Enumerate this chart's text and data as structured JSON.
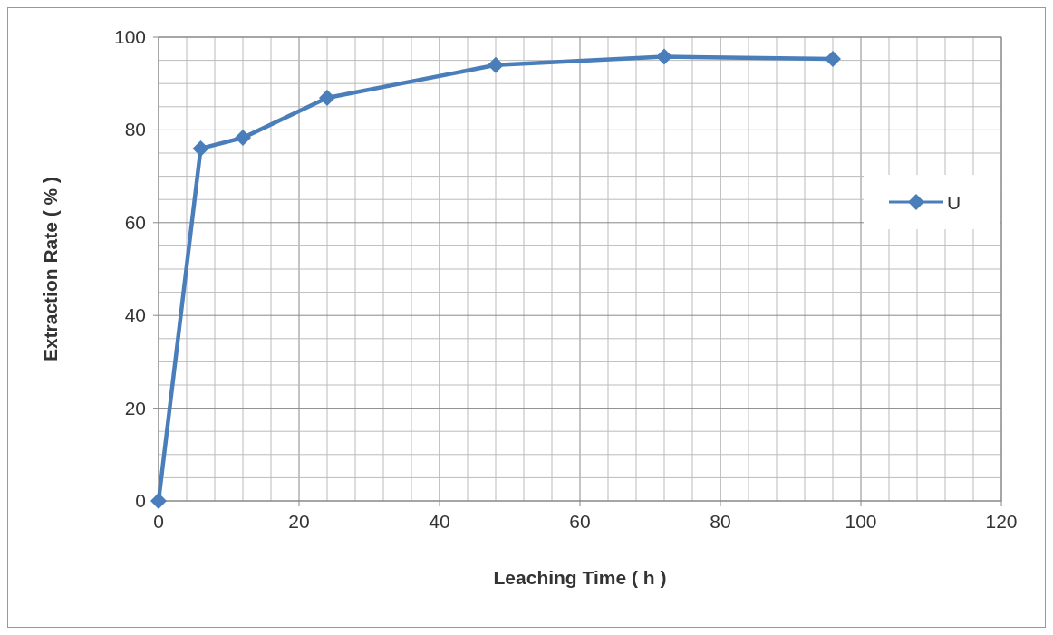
{
  "chart_data": {
    "type": "line",
    "xlabel": "Leaching Time ( h )",
    "ylabel": "Extraction Rate ( % )",
    "x": [
      0,
      6,
      12,
      24,
      48,
      72,
      96
    ],
    "series": [
      {
        "name": "U",
        "color": "#4a7ebb",
        "values": [
          0,
          76,
          78.3,
          86.9,
          94,
          95.8,
          95.3
        ]
      }
    ],
    "xlim": [
      0,
      120
    ],
    "ylim": [
      0,
      100
    ],
    "xticks": [
      0,
      {
        "value": 4,
        "label": null
      },
      {
        "value": 8,
        "label": null
      },
      {
        "value": 12,
        "label": null
      },
      {
        "value": 16,
        "label": null
      },
      20,
      {
        "value": 24,
        "label": null
      },
      {
        "value": 28,
        "label": null
      },
      {
        "value": 32,
        "label": null
      },
      {
        "value": 36,
        "label": null
      },
      40,
      {
        "value": 44,
        "label": null
      },
      {
        "value": 48,
        "label": null
      },
      {
        "value": 52,
        "label": null
      },
      {
        "value": 56,
        "label": null
      },
      60,
      {
        "value": 64,
        "label": null
      },
      {
        "value": 68,
        "label": null
      },
      {
        "value": 72,
        "label": null
      },
      {
        "value": 76,
        "label": null
      },
      80,
      {
        "value": 84,
        "label": null
      },
      {
        "value": 88,
        "label": null
      },
      {
        "value": 92,
        "label": null
      },
      {
        "value": 96,
        "label": null
      },
      100,
      {
        "value": 104,
        "label": null
      },
      {
        "value": 108,
        "label": null
      },
      {
        "value": 112,
        "label": null
      },
      {
        "value": 116,
        "label": null
      },
      120
    ],
    "yticks": [
      0,
      {
        "value": 5,
        "label": null
      },
      {
        "value": 10,
        "label": null
      },
      {
        "value": 15,
        "label": null
      },
      20,
      {
        "value": 25,
        "label": null
      },
      {
        "value": 30,
        "label": null
      },
      {
        "value": 35,
        "label": null
      },
      40,
      {
        "value": 45,
        "label": null
      },
      {
        "value": 50,
        "label": null
      },
      {
        "value": 55,
        "label": null
      },
      60,
      {
        "value": 65,
        "label": null
      },
      {
        "value": 70,
        "label": null
      },
      {
        "value": 75,
        "label": null
      },
      80,
      {
        "value": 85,
        "label": null
      },
      {
        "value": 90,
        "label": null
      },
      {
        "value": 95,
        "label": null
      },
      100
    ],
    "grid": true,
    "legend": "right",
    "marker": "diamond",
    "line_style": "solid"
  }
}
